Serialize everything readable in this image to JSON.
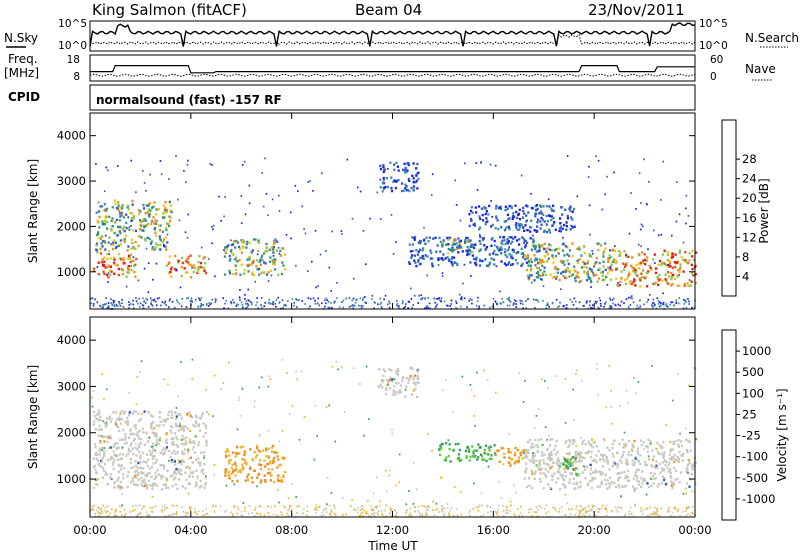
{
  "header": {
    "station": "King Salmon (fitACF)",
    "beam": "Beam 04",
    "date": "23/Nov/2011"
  },
  "top_panels": {
    "nsky_label": "N.Sky",
    "nsky_ticks": [
      "10^5",
      "10^0"
    ],
    "nsearch_label": "N.Search",
    "nsearch_ticks": [
      "10^5",
      "10^0"
    ],
    "freq_label": "Freq.",
    "freq_unit": "[MHz]",
    "freq_ticks": [
      "18",
      "8"
    ],
    "nave_label": "Nave",
    "nave_ticks": [
      "60",
      "0"
    ],
    "cpid_label": "CPID",
    "cpid_text": "normalsound (fast) -157 RF"
  },
  "chart_data": [
    {
      "type": "heatmap",
      "name": "power",
      "ylabel": "Slant Range [km]",
      "ylim": [
        180,
        4500
      ],
      "y_ticks": [
        1000,
        2000,
        3000,
        4000
      ],
      "x_ticks": [
        "00:00",
        "04:00",
        "08:00",
        "12:00",
        "16:00",
        "20:00",
        "00:00"
      ],
      "colorbar_label": "Power [dB]",
      "colorbar_ticks": [
        "4",
        "8",
        "12",
        "16",
        "20",
        "24",
        "28"
      ],
      "colors": [
        "#1e1ef0",
        "#2d5fc4",
        "#3d8fa0",
        "#2e9f5a",
        "#8cc84b",
        "#f0c419",
        "#f08a1e",
        "#e84a1a",
        "#e81010"
      ],
      "echo_regions": [
        {
          "t_start": 0.1,
          "t_end": 1.8,
          "r_min": 900,
          "r_max": 1500,
          "level": "strong"
        },
        {
          "t_start": 0.2,
          "t_end": 3.2,
          "r_min": 1500,
          "r_max": 2600,
          "level": "medium"
        },
        {
          "t_start": 3.0,
          "t_end": 4.6,
          "r_min": 900,
          "r_max": 1400,
          "level": "strong"
        },
        {
          "t_start": 5.3,
          "t_end": 7.7,
          "r_min": 950,
          "r_max": 1750,
          "level": "medium"
        },
        {
          "t_start": 11.4,
          "t_end": 13.0,
          "r_min": 2800,
          "r_max": 3450,
          "level": "weak"
        },
        {
          "t_start": 12.6,
          "t_end": 17.8,
          "r_min": 1150,
          "r_max": 1800,
          "level": "weak"
        },
        {
          "t_start": 13.8,
          "t_end": 15.2,
          "r_min": 1400,
          "r_max": 1750,
          "level": "medium"
        },
        {
          "t_start": 15.0,
          "t_end": 19.2,
          "r_min": 1900,
          "r_max": 2500,
          "level": "weak"
        },
        {
          "t_start": 17.2,
          "t_end": 20.8,
          "r_min": 800,
          "r_max": 1650,
          "level": "medium"
        },
        {
          "t_start": 20.8,
          "t_end": 24.0,
          "r_min": 700,
          "r_max": 1500,
          "level": "strong"
        }
      ]
    },
    {
      "type": "heatmap",
      "name": "velocity",
      "ylabel": "Slant Range [km]",
      "ylim": [
        180,
        4500
      ],
      "y_ticks": [
        1000,
        2000,
        3000,
        4000
      ],
      "x_ticks": [
        "00:00",
        "04:00",
        "08:00",
        "12:00",
        "16:00",
        "20:00",
        "00:00"
      ],
      "xlabel": "Time UT",
      "colorbar_label": "Velocity [m s⁻¹]",
      "colorbar_ticks": [
        "1000",
        "500",
        "100",
        "25",
        "-25",
        "-100",
        "-500",
        "-1000"
      ],
      "colors": [
        "#1e3cc8",
        "#2a5fb4",
        "#2e9f5a",
        "#5ec834",
        "#c8c8c0",
        "#f0b428",
        "#f08a1e",
        "#e84a1a",
        "#e81010"
      ],
      "echo_regions": [
        {
          "t_start": 0.1,
          "t_end": 4.6,
          "r_min": 800,
          "r_max": 2500,
          "velocity": "ground"
        },
        {
          "t_start": 5.3,
          "t_end": 7.7,
          "r_min": 950,
          "r_max": 1750,
          "velocity": -300
        },
        {
          "t_start": 11.4,
          "t_end": 13.0,
          "r_min": 2800,
          "r_max": 3450,
          "velocity": "ground"
        },
        {
          "t_start": 13.8,
          "t_end": 16.2,
          "r_min": 1400,
          "r_max": 1800,
          "velocity": 80
        },
        {
          "t_start": 16.0,
          "t_end": 17.2,
          "r_min": 1300,
          "r_max": 1700,
          "velocity": -200
        },
        {
          "t_start": 17.2,
          "t_end": 24.0,
          "r_min": 800,
          "r_max": 1900,
          "velocity": "ground"
        },
        {
          "t_start": 18.6,
          "t_end": 19.3,
          "r_min": 1100,
          "r_max": 1500,
          "velocity": 60
        }
      ]
    }
  ]
}
